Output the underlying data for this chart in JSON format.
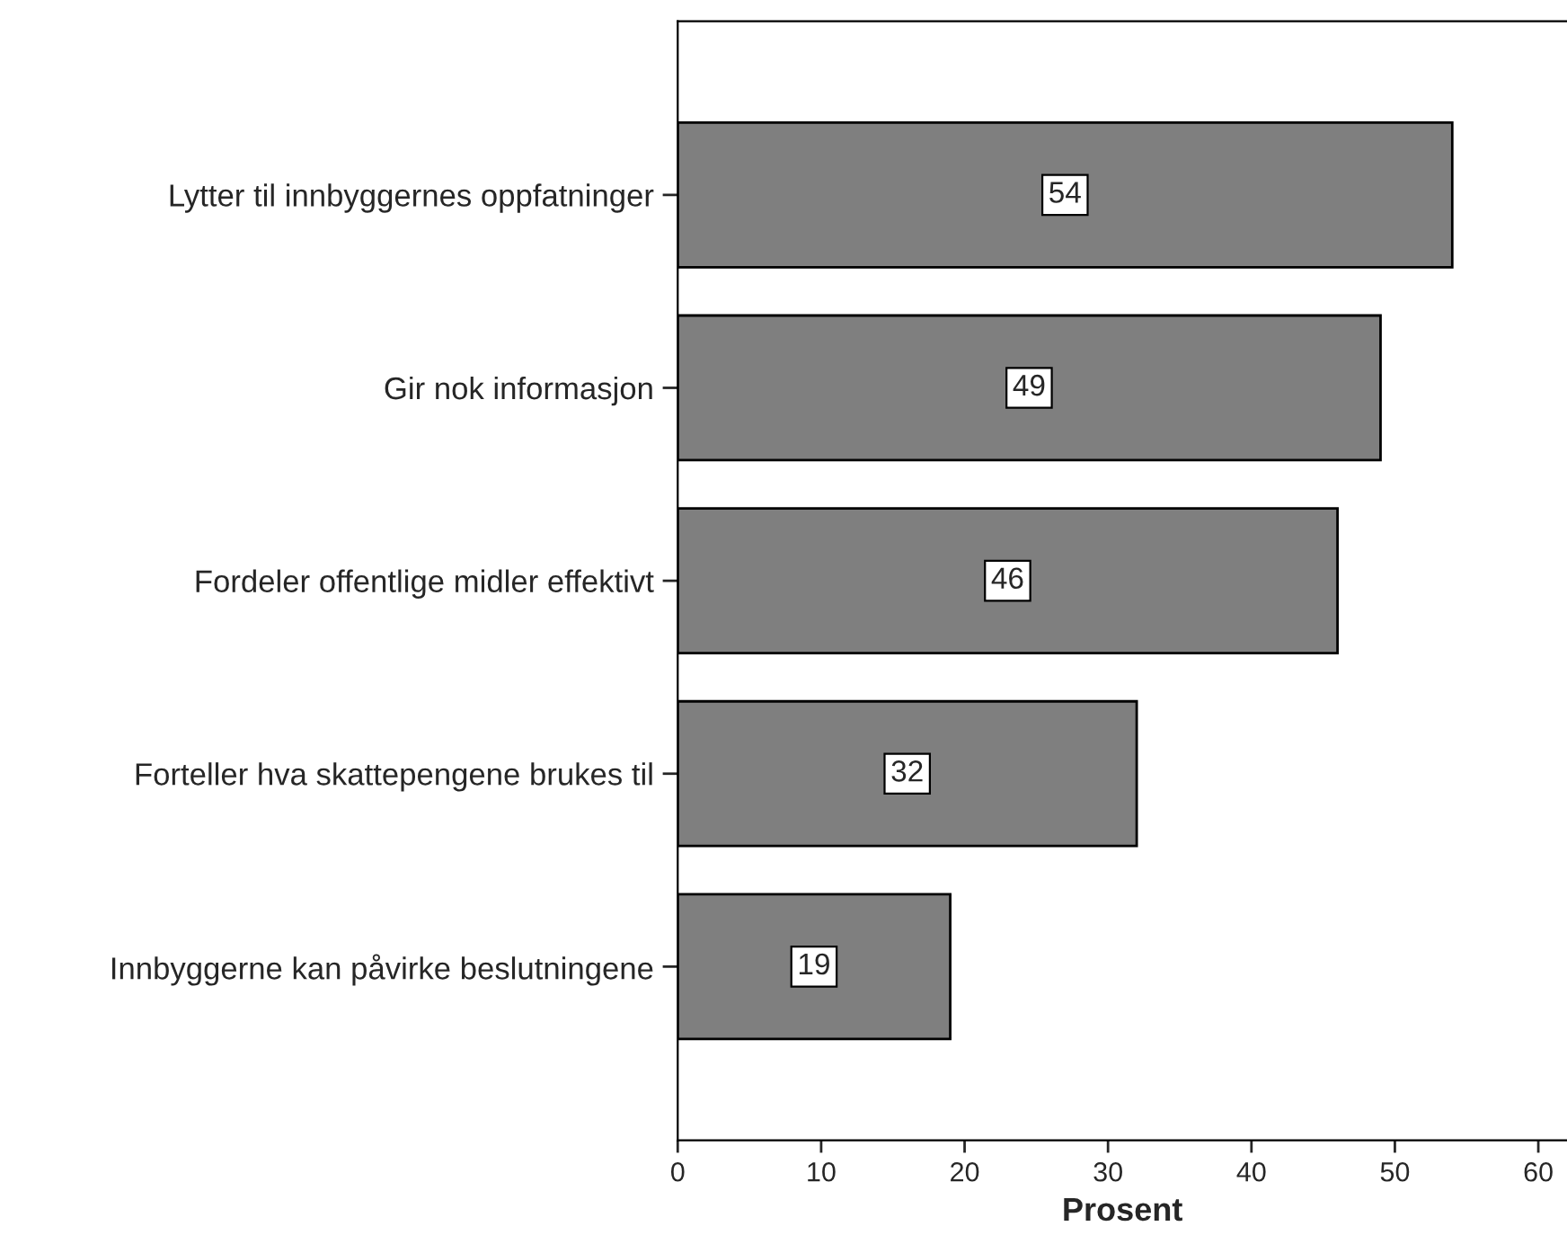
{
  "chart_data": {
    "type": "bar",
    "orientation": "horizontal",
    "xlabel": "Prosent",
    "categories": [
      "Lytter til innbyggernes oppfatninger",
      "Gir nok informasjon",
      "Fordeler offentlige midler effektivt",
      "Forteller hva skattepengene brukes til",
      "Innbyggerne kan påvirke beslutningene"
    ],
    "values": [
      54,
      49,
      46,
      32,
      19
    ],
    "color": "#7f7f7f",
    "data_labels": true,
    "xlim": [
      0,
      62
    ],
    "xticks": [
      0,
      10,
      20,
      30,
      40,
      50,
      60
    ],
    "grid": false,
    "legend": false
  }
}
